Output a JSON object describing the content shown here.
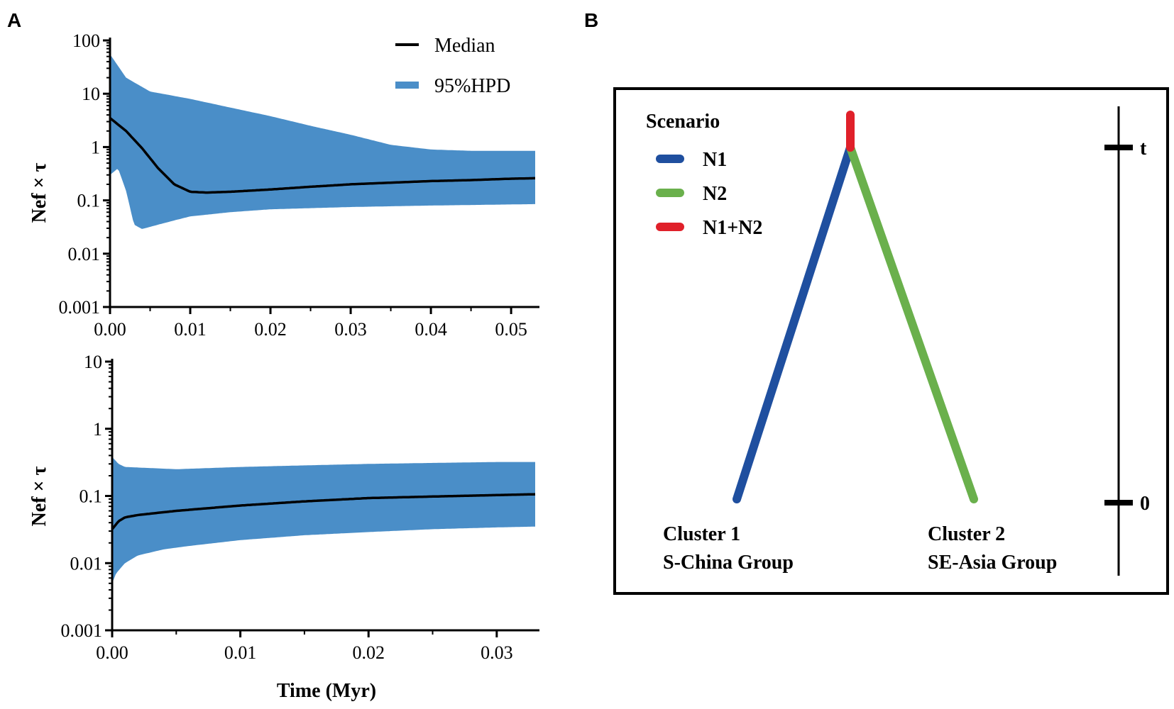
{
  "panels": {
    "a_letter": "A",
    "b_letter": "B"
  },
  "colors": {
    "hpd": "#4a8ec8",
    "median": "#000000",
    "n1": "#1f4f9f",
    "n2": "#6ab04c",
    "n1n2": "#e0202a"
  },
  "chart_data": [
    {
      "type": "area",
      "panel": "A-top",
      "ylabel": "Nef × τ",
      "xlabel": "",
      "yscale": "log",
      "ylim": [
        0.001,
        100
      ],
      "xlim": [
        0,
        0.053
      ],
      "x_ticks": [
        0.0,
        0.01,
        0.02,
        0.03,
        0.04,
        0.05
      ],
      "x_tick_labels": [
        "0.00",
        "0.01",
        "0.02",
        "0.03",
        "0.04",
        "0.05"
      ],
      "y_ticks": [
        0.001,
        0.01,
        0.1,
        1,
        10,
        100
      ],
      "y_tick_labels": [
        "0.001",
        "0.01",
        "0.1",
        "1",
        "10",
        "100"
      ],
      "legend": {
        "median_label": "Median",
        "hpd_label": "95%HPD",
        "position": "top-right"
      },
      "series": [
        {
          "name": "Median",
          "x": [
            0,
            0.002,
            0.004,
            0.006,
            0.008,
            0.01,
            0.012,
            0.015,
            0.02,
            0.025,
            0.03,
            0.035,
            0.04,
            0.045,
            0.05,
            0.053
          ],
          "values": [
            3.5,
            2.0,
            0.95,
            0.4,
            0.2,
            0.145,
            0.14,
            0.145,
            0.16,
            0.18,
            0.2,
            0.215,
            0.23,
            0.24,
            0.255,
            0.26
          ]
        },
        {
          "name": "95%HPD upper",
          "x": [
            0,
            0.002,
            0.005,
            0.01,
            0.015,
            0.02,
            0.025,
            0.03,
            0.035,
            0.04,
            0.045,
            0.05,
            0.053
          ],
          "values": [
            55,
            20,
            11,
            8,
            5.5,
            3.8,
            2.5,
            1.7,
            1.1,
            0.9,
            0.85,
            0.85,
            0.85
          ]
        },
        {
          "name": "95%HPD lower",
          "x": [
            0,
            0.001,
            0.002,
            0.003,
            0.004,
            0.006,
            0.008,
            0.01,
            0.015,
            0.02,
            0.03,
            0.04,
            0.053
          ],
          "values": [
            0.3,
            0.4,
            0.15,
            0.035,
            0.029,
            0.035,
            0.042,
            0.05,
            0.06,
            0.068,
            0.075,
            0.08,
            0.085
          ]
        }
      ]
    },
    {
      "type": "area",
      "panel": "A-bottom",
      "ylabel": "Nef × τ",
      "xlabel": "Time (Myr)",
      "yscale": "log",
      "ylim": [
        0.001,
        10
      ],
      "xlim": [
        0,
        0.033
      ],
      "x_ticks": [
        0.0,
        0.01,
        0.02,
        0.03
      ],
      "x_tick_labels": [
        "0.00",
        "0.01",
        "0.02",
        "0.03"
      ],
      "y_ticks": [
        0.001,
        0.01,
        0.1,
        1,
        10
      ],
      "y_tick_labels": [
        "0.001",
        "0.01",
        "0.1",
        "1",
        "10"
      ],
      "series": [
        {
          "name": "Median",
          "x": [
            0,
            0.0005,
            0.001,
            0.002,
            0.005,
            0.01,
            0.015,
            0.02,
            0.025,
            0.03,
            0.033
          ],
          "values": [
            0.032,
            0.042,
            0.048,
            0.052,
            0.06,
            0.072,
            0.083,
            0.093,
            0.098,
            0.103,
            0.106
          ]
        },
        {
          "name": "95%HPD upper",
          "x": [
            0,
            0.0005,
            0.001,
            0.003,
            0.005,
            0.01,
            0.015,
            0.02,
            0.025,
            0.03,
            0.033
          ],
          "values": [
            0.38,
            0.3,
            0.27,
            0.26,
            0.25,
            0.27,
            0.285,
            0.3,
            0.31,
            0.32,
            0.32
          ]
        },
        {
          "name": "95%HPD lower",
          "x": [
            0,
            0.0003,
            0.001,
            0.002,
            0.004,
            0.006,
            0.01,
            0.015,
            0.02,
            0.025,
            0.03,
            0.033
          ],
          "values": [
            0.005,
            0.007,
            0.01,
            0.013,
            0.016,
            0.018,
            0.022,
            0.026,
            0.029,
            0.032,
            0.034,
            0.035
          ]
        }
      ]
    }
  ],
  "diagram": {
    "legend_title": "Scenario",
    "legend_items": [
      {
        "label": "N1",
        "color_key": "n1"
      },
      {
        "label": "N2",
        "color_key": "n2"
      },
      {
        "label": "N1+N2",
        "color_key": "n1n2"
      }
    ],
    "time_labels": {
      "top": "t",
      "bottom": "0"
    },
    "cluster1": {
      "name": "Cluster 1",
      "group": "S-China Group"
    },
    "cluster2": {
      "name": "Cluster 2",
      "group": "SE-Asia Group"
    }
  }
}
